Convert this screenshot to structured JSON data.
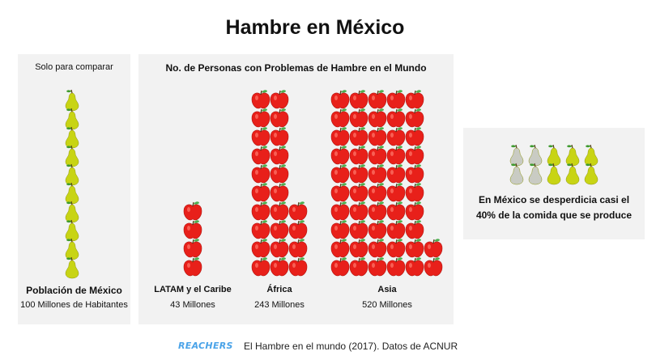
{
  "title": "Hambre en México",
  "comparison": {
    "heading": "Solo para comparar",
    "label": "Población de México",
    "value_text": "100 Millones de Habitantes",
    "icon": "pear-icon",
    "icon_count": 10
  },
  "chart_data": {
    "type": "bar",
    "title": "No. de Personas con Problemas de Hambre en el Mundo",
    "categories": [
      "LATAM y el Caribe",
      "África",
      "Asia"
    ],
    "values": [
      43,
      243,
      520
    ],
    "value_labels": [
      "43 Millones",
      "243 Millones",
      "520 Millones"
    ],
    "icon": "apple-icon",
    "icon_counts": [
      4,
      24,
      52
    ]
  },
  "waste": {
    "text_line1": "En México se desperdicia casi el",
    "text_line2": "40% de la comida que se produce",
    "wasted_pears": 4,
    "kept_pears": 6
  },
  "footer": {
    "brand": "REACHERS",
    "source": "El  Hambre en el mundo (2017). Datos de ACNUR"
  },
  "colors": {
    "apple": "#e8201a",
    "pear": "#c8d414",
    "pear_wasted": "#c9cbc3",
    "brand": "#4aa3e8"
  }
}
